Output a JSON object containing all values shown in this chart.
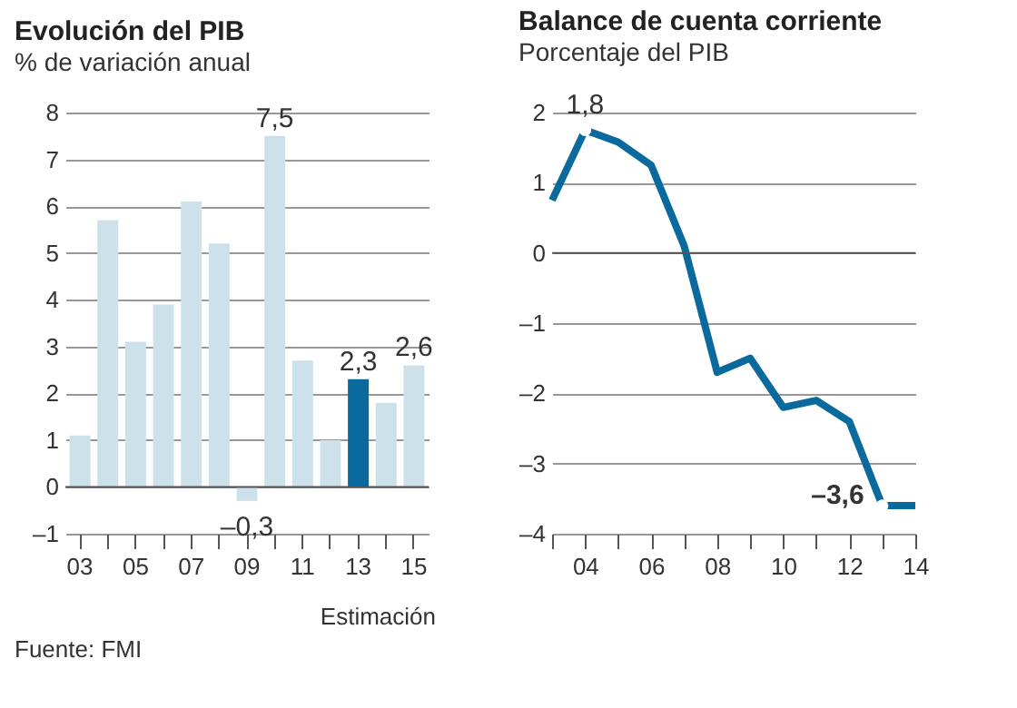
{
  "chart_data": [
    {
      "type": "bar",
      "title": "Evolución del PIB",
      "subtitle": "% de variación anual",
      "categories": [
        "03",
        null,
        "05",
        null,
        "07",
        null,
        "09",
        null,
        "11",
        null,
        "13",
        null,
        "15"
      ],
      "values": [
        1.1,
        5.7,
        3.1,
        3.9,
        6.1,
        5.2,
        -0.3,
        7.5,
        2.7,
        1.0,
        2.3,
        1.8,
        2.6
      ],
      "colors": [
        "#cde1ea",
        "#cde1ea",
        "#cde1ea",
        "#cde1ea",
        "#cde1ea",
        "#cde1ea",
        "#cde1ea",
        "#cde1ea",
        "#cde1ea",
        "#cde1ea",
        "#0a6a9e",
        "#cde1ea",
        "#cde1ea"
      ],
      "value_labels": [
        null,
        null,
        null,
        null,
        null,
        null,
        "–0,3",
        "7,5",
        null,
        null,
        "2,3",
        null,
        "2,6"
      ],
      "ylim": [
        -1,
        8
      ],
      "yticks": [
        {
          "value": -1,
          "label": "–1"
        },
        0,
        1,
        2,
        3,
        4,
        5,
        6,
        7,
        8
      ],
      "grid": "y",
      "annotations": [
        "Estimación",
        "Fuente: FMI"
      ]
    },
    {
      "type": "line",
      "title": "Balance de cuenta corriente",
      "subtitle": "Porcentaje del PIB",
      "x": [
        2003,
        2004,
        2005,
        2006,
        2007,
        2008,
        2009,
        2010,
        2011,
        2012,
        2013,
        2014
      ],
      "series": [
        {
          "color": "#0a6a9e",
          "values": [
            0.75,
            1.75,
            1.58,
            1.25,
            0.1,
            -1.7,
            -1.5,
            -2.2,
            -2.1,
            -2.4,
            -3.6,
            -3.6
          ],
          "value_labels": [
            null,
            "1,8",
            null,
            null,
            null,
            null,
            null,
            null,
            null,
            null,
            "–3,6",
            null
          ]
        }
      ],
      "xlim": [
        2003,
        2014
      ],
      "xticks": [
        {
          "value": 2003,
          "label": null
        },
        {
          "value": 2004,
          "label": "04"
        },
        {
          "value": 2005,
          "label": null
        },
        {
          "value": 2006,
          "label": "06"
        },
        {
          "value": 2007,
          "label": null
        },
        {
          "value": 2008,
          "label": "08"
        },
        {
          "value": 2009,
          "label": null
        },
        {
          "value": 2010,
          "label": "10"
        },
        {
          "value": 2011,
          "label": null
        },
        {
          "value": 2012,
          "label": "12"
        },
        {
          "value": 2013,
          "label": null
        },
        {
          "value": 2014,
          "label": "14"
        }
      ],
      "ylim": [
        -4,
        2
      ],
      "yticks": [
        {
          "value": -4,
          "label": "–4"
        },
        {
          "value": -3,
          "label": "–3"
        },
        {
          "value": -2,
          "label": "–2"
        },
        {
          "value": -1,
          "label": "–1"
        },
        0,
        1,
        2
      ],
      "grid": "y"
    }
  ]
}
